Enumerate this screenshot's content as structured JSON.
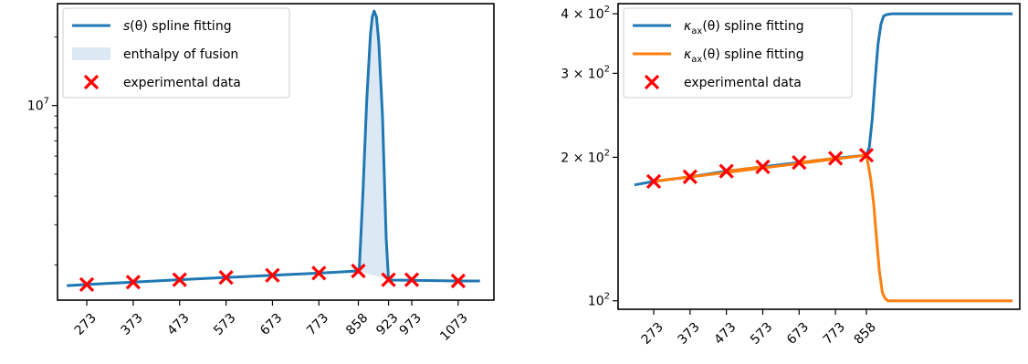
{
  "colors": {
    "blue": "#1f77b4",
    "orange": "#ff7f0e",
    "red": "#ff0000",
    "fill": "#dce8f3"
  },
  "chart_data": [
    {
      "type": "line",
      "yscale": "log",
      "ylim": [
        1400000,
        28000000
      ],
      "xlim": [
        210,
        1150
      ],
      "yticks": [
        {
          "value": 10000000,
          "label": "10^7"
        }
      ],
      "xticks": [
        273,
        373,
        473,
        573,
        673,
        773,
        858,
        923,
        973,
        1073
      ],
      "xtick_labels": [
        "273",
        "373",
        "473",
        "573",
        "673",
        "773",
        "858",
        "923",
        "973",
        "1073"
      ],
      "legend": {
        "position": "top-left",
        "entries": [
          {
            "kind": "line",
            "label_main": "s",
            "label_arg": "(θ) spline fitting",
            "color": "blue"
          },
          {
            "kind": "patch",
            "label_main": "enthalpy of fusion",
            "label_arg": "",
            "color": "fill"
          },
          {
            "kind": "marker",
            "label_main": "experimental data",
            "label_arg": "",
            "color": "red"
          }
        ]
      },
      "series": [
        {
          "kind": "spline",
          "color": "blue",
          "x": [
            230,
            273,
            373,
            473,
            573,
            673,
            773,
            858,
            860,
            868,
            876,
            884,
            888,
            892,
            897,
            902,
            910,
            918,
            923,
            930,
            973,
            1073,
            1120
          ],
          "y": [
            1620000,
            1640000,
            1680000,
            1720000,
            1760000,
            1800000,
            1840000,
            1880000,
            1920000,
            4200000,
            10500000,
            20500000,
            24500000,
            26000000,
            24500000,
            19000000,
            9000000,
            2600000,
            1720000,
            1715000,
            1710000,
            1700000,
            1700000
          ]
        },
        {
          "kind": "fill",
          "color": "fill",
          "x_from": 858,
          "x_to": 923
        },
        {
          "kind": "markers",
          "color": "red",
          "x": [
            273,
            373,
            473,
            573,
            673,
            773,
            858,
            923,
            973,
            1073
          ],
          "y": [
            1640000,
            1680000,
            1720000,
            1760000,
            1800000,
            1840000,
            1880000,
            1720000,
            1720000,
            1700000
          ]
        }
      ]
    },
    {
      "type": "line",
      "yscale": "log",
      "ylim": [
        96,
        420
      ],
      "xlim": [
        175,
        1280
      ],
      "yticks": [
        {
          "value": 400,
          "label": "4 × 10^2"
        },
        {
          "value": 300,
          "label": "3 × 10^2"
        },
        {
          "value": 200,
          "label": "2 × 10^2"
        },
        {
          "value": 100,
          "label": "10^2"
        }
      ],
      "xticks": [
        273,
        373,
        473,
        573,
        673,
        773,
        858
      ],
      "xtick_labels": [
        "273",
        "373",
        "473",
        "573",
        "673",
        "773",
        "858"
      ],
      "legend": {
        "position": "top-left",
        "entries": [
          {
            "kind": "line",
            "label_main": "κ",
            "label_sub": "ax",
            "label_arg": "(θ) spline fitting",
            "color": "blue"
          },
          {
            "kind": "line",
            "label_main": "κ",
            "label_sub": "ax",
            "label_arg": "(θ) spline fitting",
            "color": "orange"
          },
          {
            "kind": "marker",
            "label_main": "experimental data",
            "label_sub": "",
            "label_arg": "",
            "color": "red"
          }
        ]
      },
      "series": [
        {
          "kind": "spline",
          "color": "blue",
          "x": [
            220,
            273,
            373,
            473,
            573,
            673,
            773,
            858,
            866,
            874,
            882,
            890,
            898,
            905,
            912,
            920,
            930,
            1000,
            1200,
            1260
          ],
          "y": [
            175,
            178,
            182,
            187,
            191,
            195,
            199,
            202,
            210,
            240,
            290,
            345,
            380,
            395,
            398,
            399,
            400,
            400,
            400,
            400
          ]
        },
        {
          "kind": "spline",
          "color": "orange",
          "x": [
            273,
            858,
            862,
            870,
            878,
            886,
            894,
            902,
            910,
            918,
            930,
            1000,
            1200,
            1260
          ],
          "y": [
            178,
            202,
            195,
            180,
            160,
            135,
            115,
            104,
            101,
            100,
            100,
            100,
            100,
            100
          ]
        },
        {
          "kind": "segments",
          "color": "orange",
          "x": [
            273,
            373,
            473,
            573,
            673,
            773,
            858
          ],
          "y": [
            178,
            182,
            187,
            191,
            195,
            199,
            202
          ]
        },
        {
          "kind": "markers",
          "color": "red",
          "x": [
            273,
            373,
            473,
            573,
            673,
            773,
            858
          ],
          "y": [
            178,
            182,
            187,
            191,
            195,
            199,
            202
          ]
        }
      ]
    }
  ]
}
